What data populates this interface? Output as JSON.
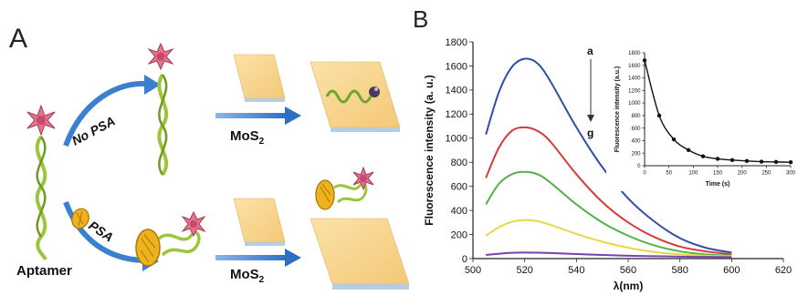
{
  "panel_a": {
    "label": "A",
    "no_psa": "No PSA",
    "psa": "PSA",
    "mos2_main": "MoS",
    "mos2_sub": "2",
    "aptamer": "Aptamer"
  },
  "panel_b": {
    "label": "B",
    "arrow_top": "a",
    "arrow_bottom": "g"
  },
  "chart_data": [
    {
      "type": "line",
      "xlabel": "λ(nm)",
      "ylabel": "Fluorescence intensity (a. u.)",
      "xlim": [
        500,
        620
      ],
      "ylim": [
        0,
        1800
      ],
      "xticks": [
        "500",
        "520",
        "540",
        "560",
        "580",
        "600",
        "620"
      ],
      "yticks": [
        "0",
        "200",
        "400",
        "600",
        "800",
        "1000",
        "1200",
        "1400",
        "1600",
        "1800"
      ],
      "grid": false,
      "colors": [
        "#2f4fa8",
        "#d83a3a",
        "#52b04a",
        "#e6d84a",
        "#7a3fb0"
      ],
      "series": [
        {
          "x": [
            505,
            510,
            515,
            520,
            525,
            530,
            540,
            550,
            560,
            570,
            580,
            590,
            600
          ],
          "values": [
            1030,
            1380,
            1590,
            1660,
            1620,
            1470,
            1090,
            760,
            500,
            310,
            170,
            90,
            50
          ]
        },
        {
          "x": [
            505,
            510,
            515,
            520,
            525,
            530,
            540,
            550,
            560,
            570,
            580,
            590,
            600
          ],
          "values": [
            670,
            920,
            1060,
            1090,
            1060,
            970,
            700,
            470,
            300,
            180,
            100,
            60,
            35
          ]
        },
        {
          "x": [
            505,
            510,
            515,
            520,
            525,
            530,
            540,
            550,
            560,
            570,
            580,
            590,
            600
          ],
          "values": [
            450,
            620,
            700,
            720,
            700,
            630,
            450,
            300,
            190,
            110,
            60,
            35,
            25
          ]
        },
        {
          "x": [
            505,
            510,
            515,
            520,
            525,
            530,
            540,
            550,
            560,
            570,
            580,
            590,
            600
          ],
          "values": [
            190,
            260,
            305,
            320,
            310,
            280,
            205,
            140,
            90,
            55,
            35,
            25,
            20
          ]
        },
        {
          "x": [
            505,
            510,
            515,
            520,
            525,
            530,
            540,
            550,
            560,
            570,
            580,
            590,
            600
          ],
          "values": [
            30,
            40,
            48,
            50,
            49,
            46,
            38,
            30,
            24,
            20,
            16,
            14,
            12
          ]
        }
      ]
    },
    {
      "type": "scatter",
      "xlabel": "Time (s)",
      "ylabel": "Fluorescence intensity (a.u.)",
      "xlim": [
        0,
        300
      ],
      "ylim": [
        0,
        1800
      ],
      "xticks": [
        "0",
        "50",
        "100",
        "150",
        "200",
        "250",
        "300"
      ],
      "yticks": [
        "0",
        "200",
        "400",
        "600",
        "800",
        "1000",
        "1200",
        "1400",
        "1600",
        "1800"
      ],
      "grid": false,
      "series": [
        {
          "x": [
            0,
            30,
            60,
            90,
            120,
            150,
            180,
            210,
            240,
            270,
            300
          ],
          "values": [
            1680,
            800,
            420,
            250,
            150,
            110,
            90,
            75,
            65,
            60,
            55
          ]
        }
      ]
    }
  ]
}
